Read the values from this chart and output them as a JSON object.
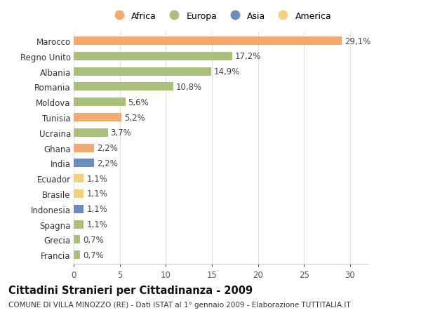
{
  "countries": [
    "Marocco",
    "Regno Unito",
    "Albania",
    "Romania",
    "Moldova",
    "Tunisia",
    "Ucraina",
    "Ghana",
    "India",
    "Ecuador",
    "Brasile",
    "Indonesia",
    "Spagna",
    "Grecia",
    "Francia"
  ],
  "values": [
    29.1,
    17.2,
    14.9,
    10.8,
    5.6,
    5.2,
    3.7,
    2.2,
    2.2,
    1.1,
    1.1,
    1.1,
    1.1,
    0.7,
    0.7
  ],
  "continents": [
    "Africa",
    "Europa",
    "Europa",
    "Europa",
    "Europa",
    "Africa",
    "Europa",
    "Africa",
    "Asia",
    "America",
    "America",
    "Asia",
    "Europa",
    "Europa",
    "Europa"
  ],
  "colors": {
    "Africa": "#F5A96B",
    "Europa": "#A8C07A",
    "Asia": "#6B8CBF",
    "America": "#F5D07A"
  },
  "legend_order": [
    "Africa",
    "Europa",
    "Asia",
    "America"
  ],
  "xlim": [
    0,
    32
  ],
  "xticks": [
    0,
    5,
    10,
    15,
    20,
    25,
    30
  ],
  "title": "Cittadini Stranieri per Cittadinanza - 2009",
  "subtitle": "COMUNE DI VILLA MINOZZO (RE) - Dati ISTAT al 1° gennaio 2009 - Elaborazione TUTTITALIA.IT",
  "bar_height": 0.55,
  "background_color": "#ffffff",
  "grid_color": "#e0e0e0",
  "label_fontsize": 8.5,
  "tick_fontsize": 8.5,
  "title_fontsize": 10.5,
  "subtitle_fontsize": 7.5
}
